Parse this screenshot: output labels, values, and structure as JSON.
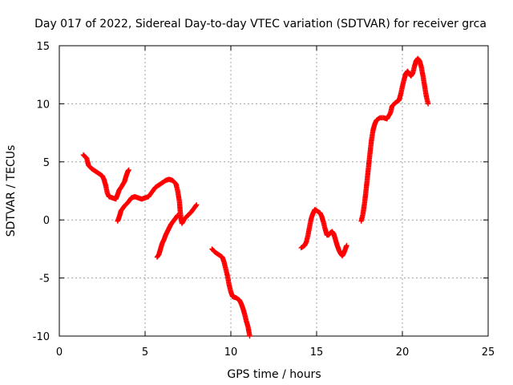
{
  "chart_data": {
    "type": "scatter",
    "title": "Day 017 of 2022, Sidereal Day-to-day VTEC variation (SDTVAR) for receiver grca",
    "xlabel": "GPS time / hours",
    "ylabel": "SDTVAR / TECUs",
    "xlim": [
      0,
      25
    ],
    "ylim": [
      -10,
      15
    ],
    "x_ticks": [
      0,
      5,
      10,
      15,
      20,
      25
    ],
    "y_ticks": [
      -10,
      -5,
      0,
      5,
      10,
      15
    ],
    "x_tick_labels": [
      "0",
      "5",
      "10",
      "15",
      "20",
      "25"
    ],
    "y_tick_labels": [
      "-10",
      "-5",
      "0",
      "5",
      "10",
      "15"
    ],
    "grid": true,
    "marker": "+",
    "series_color": "#ff0000",
    "series": [
      {
        "segments": [
          [
            [
              1.4,
              5.6
            ],
            [
              1.6,
              5.3
            ],
            [
              1.7,
              4.7
            ],
            [
              1.9,
              4.4
            ],
            [
              2.1,
              4.2
            ],
            [
              2.3,
              4.0
            ],
            [
              2.5,
              3.8
            ],
            [
              2.6,
              3.5
            ],
            [
              2.7,
              3.0
            ],
            [
              2.8,
              2.3
            ],
            [
              2.9,
              2.0
            ],
            [
              3.1,
              1.9
            ],
            [
              3.3,
              1.8
            ],
            [
              3.4,
              2.2
            ],
            [
              3.5,
              2.6
            ],
            [
              3.6,
              2.8
            ],
            [
              3.8,
              3.3
            ],
            [
              3.9,
              3.8
            ],
            [
              4.0,
              4.2
            ],
            [
              4.05,
              4.3
            ]
          ],
          [
            [
              3.4,
              -0.1
            ],
            [
              3.5,
              0.3
            ],
            [
              3.6,
              0.8
            ],
            [
              3.8,
              1.2
            ],
            [
              4.0,
              1.5
            ],
            [
              4.2,
              1.9
            ],
            [
              4.4,
              2.0
            ],
            [
              4.6,
              1.9
            ],
            [
              4.8,
              1.8
            ],
            [
              5.0,
              1.9
            ],
            [
              5.2,
              2.0
            ],
            [
              5.4,
              2.4
            ],
            [
              5.6,
              2.8
            ],
            [
              5.8,
              3.0
            ],
            [
              6.0,
              3.2
            ],
            [
              6.2,
              3.4
            ],
            [
              6.4,
              3.5
            ],
            [
              6.6,
              3.4
            ],
            [
              6.8,
              3.1
            ],
            [
              6.9,
              2.5
            ],
            [
              7.0,
              1.6
            ],
            [
              7.05,
              0.7
            ],
            [
              7.1,
              0.0
            ],
            [
              7.15,
              -0.3
            ],
            [
              7.3,
              0.1
            ],
            [
              7.5,
              0.4
            ],
            [
              7.7,
              0.7
            ],
            [
              7.9,
              1.1
            ],
            [
              8.0,
              1.3
            ]
          ],
          [
            [
              5.7,
              -3.2
            ],
            [
              5.8,
              -3.0
            ],
            [
              5.9,
              -2.5
            ],
            [
              6.0,
              -2.0
            ],
            [
              6.1,
              -1.7
            ],
            [
              6.2,
              -1.3
            ],
            [
              6.3,
              -1.0
            ],
            [
              6.4,
              -0.7
            ],
            [
              6.5,
              -0.4
            ],
            [
              6.6,
              -0.2
            ],
            [
              6.7,
              0.0
            ],
            [
              6.8,
              0.2
            ],
            [
              6.9,
              0.4
            ]
          ],
          [
            [
              8.9,
              -2.5
            ],
            [
              9.1,
              -2.8
            ],
            [
              9.3,
              -3.0
            ],
            [
              9.5,
              -3.2
            ],
            [
              9.6,
              -3.6
            ],
            [
              9.7,
              -4.2
            ],
            [
              9.8,
              -4.8
            ],
            [
              9.9,
              -5.6
            ],
            [
              10.0,
              -6.2
            ],
            [
              10.1,
              -6.6
            ],
            [
              10.3,
              -6.7
            ],
            [
              10.5,
              -6.9
            ],
            [
              10.6,
              -7.2
            ],
            [
              10.7,
              -7.6
            ],
            [
              10.8,
              -8.1
            ],
            [
              10.9,
              -8.7
            ],
            [
              11.0,
              -9.2
            ],
            [
              11.05,
              -9.6
            ],
            [
              11.1,
              -10.0
            ]
          ],
          [
            [
              14.1,
              -2.4
            ],
            [
              14.3,
              -2.2
            ],
            [
              14.4,
              -1.9
            ],
            [
              14.5,
              -1.3
            ],
            [
              14.6,
              -0.5
            ],
            [
              14.7,
              0.2
            ],
            [
              14.8,
              0.6
            ],
            [
              14.9,
              0.9
            ],
            [
              15.0,
              0.8
            ],
            [
              15.2,
              0.6
            ],
            [
              15.3,
              0.3
            ],
            [
              15.4,
              -0.2
            ],
            [
              15.5,
              -0.8
            ],
            [
              15.6,
              -1.3
            ],
            [
              15.7,
              -1.3
            ],
            [
              15.8,
              -1.1
            ],
            [
              15.9,
              -1.0
            ],
            [
              16.0,
              -1.2
            ],
            [
              16.1,
              -1.7
            ],
            [
              16.2,
              -2.2
            ],
            [
              16.3,
              -2.6
            ],
            [
              16.4,
              -2.9
            ],
            [
              16.5,
              -3.1
            ],
            [
              16.6,
              -2.8
            ],
            [
              16.7,
              -2.4
            ],
            [
              16.75,
              -2.2
            ]
          ],
          [
            [
              17.6,
              -0.1
            ],
            [
              17.7,
              0.5
            ],
            [
              17.8,
              1.5
            ],
            [
              17.9,
              2.8
            ],
            [
              18.0,
              4.2
            ],
            [
              18.1,
              5.6
            ],
            [
              18.2,
              6.9
            ],
            [
              18.3,
              7.8
            ],
            [
              18.4,
              8.3
            ],
            [
              18.5,
              8.6
            ],
            [
              18.7,
              8.8
            ],
            [
              18.9,
              8.8
            ],
            [
              19.1,
              8.7
            ],
            [
              19.3,
              9.2
            ],
            [
              19.4,
              9.8
            ],
            [
              19.6,
              10.1
            ],
            [
              19.8,
              10.3
            ],
            [
              19.9,
              10.8
            ],
            [
              20.0,
              11.5
            ],
            [
              20.1,
              12.1
            ],
            [
              20.2,
              12.6
            ],
            [
              20.3,
              12.8
            ],
            [
              20.4,
              12.6
            ],
            [
              20.5,
              12.4
            ],
            [
              20.6,
              12.6
            ],
            [
              20.7,
              13.2
            ],
            [
              20.8,
              13.7
            ],
            [
              20.9,
              13.9
            ],
            [
              21.0,
              13.7
            ],
            [
              21.1,
              13.2
            ],
            [
              21.2,
              12.4
            ],
            [
              21.3,
              11.5
            ],
            [
              21.4,
              10.6
            ],
            [
              21.5,
              10.0
            ]
          ]
        ]
      }
    ]
  }
}
